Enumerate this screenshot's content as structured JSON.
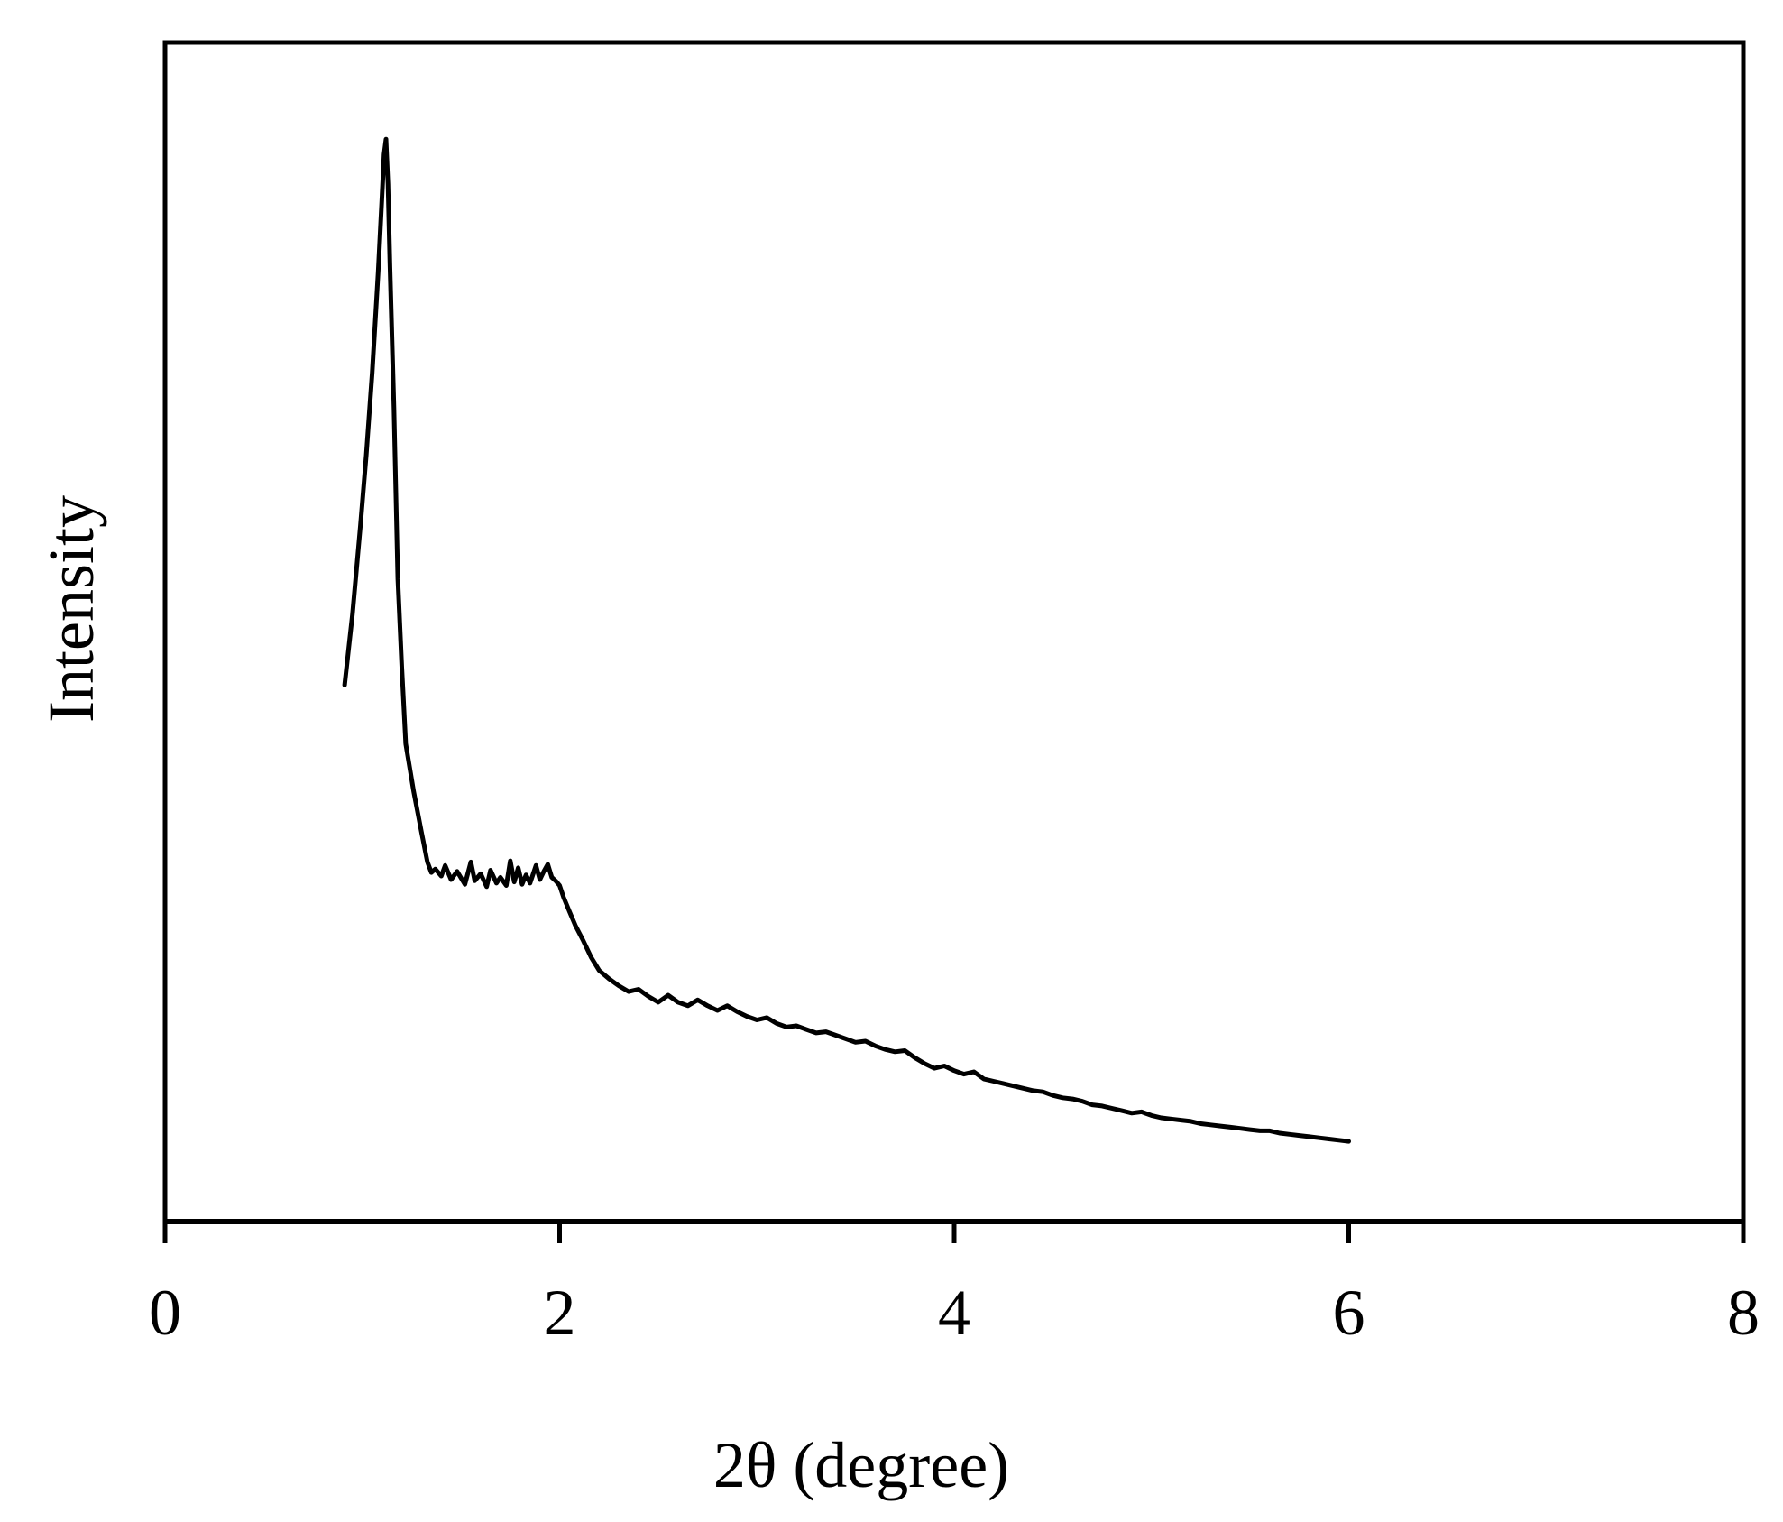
{
  "chart_data": {
    "type": "line",
    "title": "",
    "xlabel": "2θ (degree)",
    "ylabel": "Intensity",
    "xlim": [
      0,
      8
    ],
    "ylim": [
      0,
      100
    ],
    "xticks": [
      0,
      2,
      4,
      6,
      8
    ],
    "xtick_labels": [
      "0",
      "2",
      "4",
      "6",
      "8"
    ],
    "yticks": [],
    "grid": false,
    "legend": "none",
    "line_color": "#000000",
    "series": [
      {
        "x": [
          0.91,
          0.95,
          0.99,
          1.02,
          1.05,
          1.08,
          1.1,
          1.11,
          1.12,
          1.13,
          1.14,
          1.16,
          1.18,
          1.2,
          1.22,
          1.26,
          1.3,
          1.33,
          1.35,
          1.37,
          1.4,
          1.42,
          1.45,
          1.48,
          1.52,
          1.55,
          1.57,
          1.6,
          1.63,
          1.65,
          1.68,
          1.7,
          1.73,
          1.75,
          1.77,
          1.79,
          1.81,
          1.83,
          1.85,
          1.88,
          1.9,
          1.92,
          1.94,
          1.96,
          1.98,
          2.0,
          2.02,
          2.05,
          2.08,
          2.12,
          2.16,
          2.2,
          2.25,
          2.3,
          2.35,
          2.4,
          2.45,
          2.5,
          2.55,
          2.6,
          2.65,
          2.7,
          2.75,
          2.8,
          2.85,
          2.9,
          2.95,
          3.0,
          3.05,
          3.1,
          3.15,
          3.2,
          3.25,
          3.3,
          3.35,
          3.4,
          3.45,
          3.5,
          3.55,
          3.6,
          3.65,
          3.7,
          3.75,
          3.8,
          3.85,
          3.9,
          3.95,
          4.0,
          4.05,
          4.1,
          4.15,
          4.2,
          4.25,
          4.3,
          4.35,
          4.4,
          4.45,
          4.5,
          4.55,
          4.6,
          4.65,
          4.7,
          4.75,
          4.8,
          4.85,
          4.9,
          4.95,
          5.0,
          5.05,
          5.1,
          5.15,
          5.2,
          5.25,
          5.3,
          5.35,
          5.4,
          5.45,
          5.5,
          5.55,
          5.6,
          5.65,
          5.7,
          5.75,
          5.8,
          5.85,
          5.9,
          5.95,
          6.0
        ],
        "y": [
          45.5,
          51.5,
          59.0,
          65.0,
          72.0,
          80.5,
          87.0,
          90.5,
          91.8,
          88.0,
          81.0,
          69.0,
          54.5,
          47.0,
          40.5,
          36.5,
          33.0,
          30.5,
          29.6,
          29.9,
          29.3,
          30.2,
          29.0,
          29.7,
          28.6,
          30.5,
          28.9,
          29.5,
          28.4,
          29.8,
          28.7,
          29.2,
          28.5,
          30.6,
          28.8,
          30.0,
          28.6,
          29.4,
          28.7,
          30.2,
          29.0,
          29.7,
          30.3,
          29.2,
          28.9,
          28.5,
          27.5,
          26.3,
          25.1,
          23.8,
          22.4,
          21.3,
          20.6,
          20.0,
          19.5,
          19.7,
          19.1,
          18.6,
          19.2,
          18.6,
          18.3,
          18.8,
          18.3,
          17.9,
          18.3,
          17.8,
          17.4,
          17.1,
          17.3,
          16.8,
          16.5,
          16.6,
          16.3,
          16.0,
          16.1,
          15.8,
          15.5,
          15.2,
          15.3,
          14.9,
          14.6,
          14.4,
          14.5,
          13.9,
          13.4,
          13.0,
          13.2,
          12.8,
          12.5,
          12.7,
          12.1,
          11.9,
          11.7,
          11.5,
          11.3,
          11.1,
          11.0,
          10.7,
          10.5,
          10.4,
          10.2,
          9.9,
          9.8,
          9.6,
          9.4,
          9.2,
          9.3,
          9.0,
          8.8,
          8.7,
          8.6,
          8.5,
          8.3,
          8.2,
          8.1,
          8.0,
          7.9,
          7.8,
          7.7,
          7.7,
          7.5,
          7.4,
          7.3,
          7.2,
          7.1,
          7.0,
          6.9,
          6.8
        ]
      }
    ]
  }
}
